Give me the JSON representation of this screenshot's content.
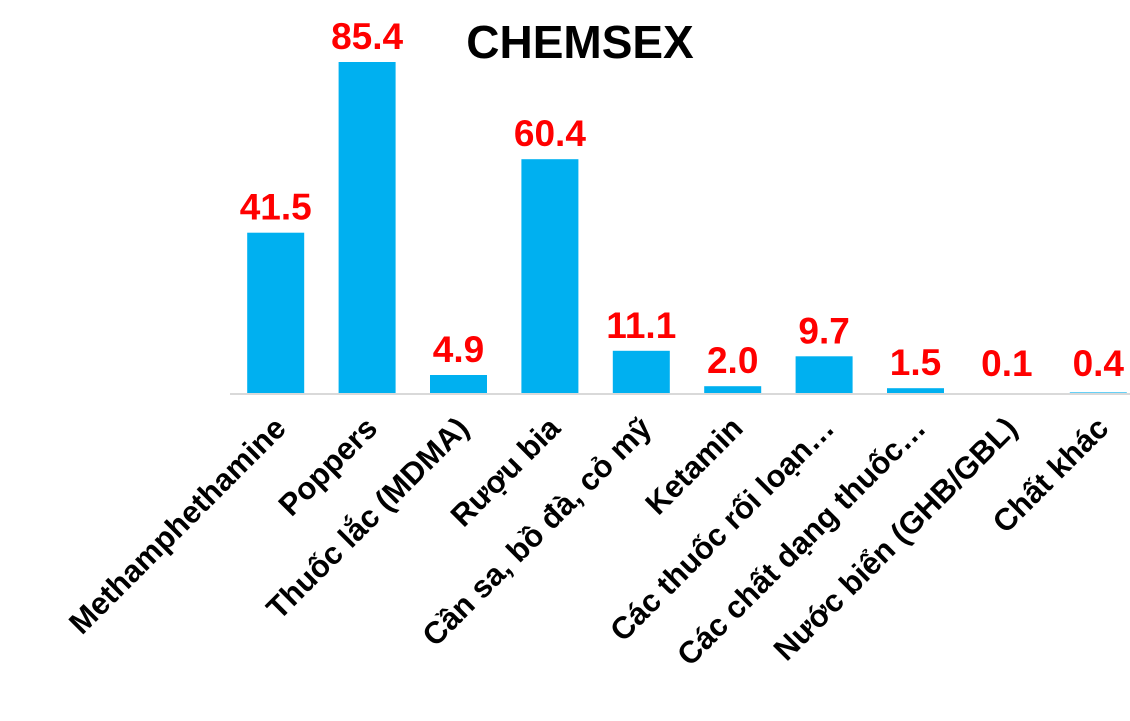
{
  "chart_data": {
    "type": "bar",
    "title": "CHEMSEX",
    "categories": [
      "Methamphethamine",
      "Poppers",
      "Thuốc lắc (MDMA)",
      "Rượu bia",
      "Cần sa, bồ đà, cỏ mỹ",
      "Ketamin",
      "Các thuốc rối loạn…",
      "Các chất dạng thuốc…",
      "Nước biển (GHB/GBL)",
      "Chất khác"
    ],
    "values": [
      41.5,
      85.4,
      4.9,
      60.4,
      11.1,
      2.0,
      9.7,
      1.5,
      0.1,
      0.4
    ],
    "value_labels": [
      "41.5",
      "85.4",
      "4.9",
      "60.4",
      "11.1",
      "2.0",
      "9.7",
      "1.5",
      "0.1",
      "0.4"
    ],
    "ylim": [
      0,
      85.4
    ],
    "grid": false,
    "legend": "none",
    "colors": {
      "bar": "#00B0F0",
      "label": "#FF0000",
      "axis": "#D9D9D9",
      "title": "#000000"
    }
  }
}
